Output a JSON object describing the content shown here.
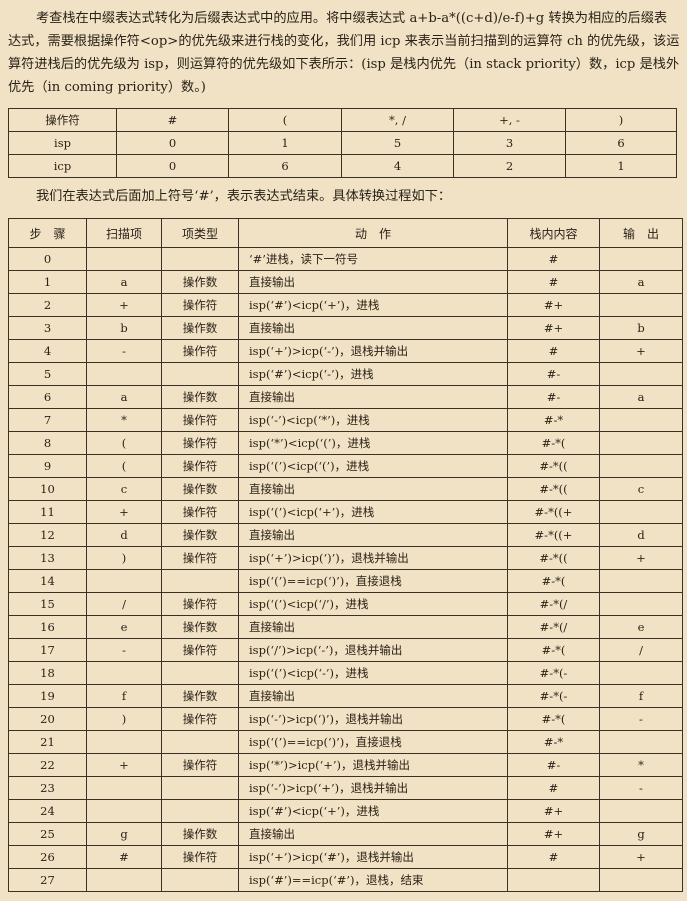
{
  "intro": "考查栈在中缀表达式转化为后缀表达式中的应用。将中缀表达式 a+b-a*((c+d)/e-f)+g 转换为相应的后缀表达式，需要根据操作符<op>的优先级来进行栈的变化，我们用 icp 来表示当前扫描到的运算符 ch 的优先级，该运算符进栈后的优先级为 isp，则运算符的优先级如下表所示：(isp 是栈内优先（in stack priority）数，icp 是栈外优先（in coming priority）数。)",
  "priority_table": {
    "rows": [
      [
        "操作符",
        "#",
        "(",
        "*, /",
        "+, -",
        ")"
      ],
      [
        "isp",
        "0",
        "1",
        "5",
        "3",
        "6"
      ],
      [
        "icp",
        "0",
        "6",
        "4",
        "2",
        "1"
      ]
    ]
  },
  "intro2": "我们在表达式后面加上符号‘#’，表示表达式结束。具体转换过程如下：",
  "steps_headers": [
    "步　骤",
    "扫描项",
    "项类型",
    "动　作",
    "栈内内容",
    "输　出"
  ],
  "steps": [
    [
      "0",
      "",
      "",
      "‘#’进栈，读下一符号",
      "#",
      ""
    ],
    [
      "1",
      "a",
      "操作数",
      "直接输出",
      "#",
      "a"
    ],
    [
      "2",
      "+",
      "操作符",
      "isp(‘#’)<icp(‘+’)，进栈",
      "#+",
      ""
    ],
    [
      "3",
      "b",
      "操作数",
      "直接输出",
      "#+",
      "b"
    ],
    [
      "4",
      "-",
      "操作符",
      "isp(‘+’)>icp(‘-’)，退栈并输出",
      "#",
      "+"
    ],
    [
      "5",
      "",
      "",
      "isp(‘#’)<icp(‘-’)，进栈",
      "#-",
      ""
    ],
    [
      "6",
      "a",
      "操作数",
      "直接输出",
      "#-",
      "a"
    ],
    [
      "7",
      "*",
      "操作符",
      "isp(‘-’)<icp(‘*’)，进栈",
      "#-*",
      ""
    ],
    [
      "8",
      "(",
      "操作符",
      "isp(‘*’)<icp(‘(’)，进栈",
      "#-*(",
      ""
    ],
    [
      "9",
      "(",
      "操作符",
      "isp(‘(’)<icp(‘(’)，进栈",
      "#-*((",
      ""
    ],
    [
      "10",
      "c",
      "操作数",
      "直接输出",
      "#-*((",
      "c"
    ],
    [
      "11",
      "+",
      "操作符",
      "isp(‘(’)<icp(‘+’)，进栈",
      "#-*((+",
      ""
    ],
    [
      "12",
      "d",
      "操作数",
      "直接输出",
      "#-*((+",
      "d"
    ],
    [
      "13",
      ")",
      "操作符",
      "isp(‘+’)>icp(‘)’)，退栈并输出",
      "#-*((",
      "+"
    ],
    [
      "14",
      "",
      "",
      "isp(‘(’)==icp(‘)’)，直接退栈",
      "#-*(",
      ""
    ],
    [
      "15",
      "/",
      "操作符",
      "isp(‘(’)<icp(‘/’)，进栈",
      "#-*(/",
      ""
    ],
    [
      "16",
      "e",
      "操作数",
      "直接输出",
      "#-*(/",
      "e"
    ],
    [
      "17",
      "-",
      "操作符",
      "isp(‘/’)>icp(‘-’)，退栈并输出",
      "#-*(",
      "/"
    ],
    [
      "18",
      "",
      "",
      "isp(‘(’)<icp(‘-’)，进栈",
      "#-*(-",
      ""
    ],
    [
      "19",
      "f",
      "操作数",
      "直接输出",
      "#-*(-",
      "f"
    ],
    [
      "20",
      ")",
      "操作符",
      "isp(‘-’)>icp(‘)’)，退栈并输出",
      "#-*(",
      "-"
    ],
    [
      "21",
      "",
      "",
      "isp(‘(’)==icp(‘)’)，直接退栈",
      "#-*",
      ""
    ],
    [
      "22",
      "+",
      "操作符",
      "isp(‘*’)>icp(‘+’)，退栈并输出",
      "#-",
      "*"
    ],
    [
      "23",
      "",
      "",
      "isp(‘-’)>icp(‘+’)，退栈并输出",
      "#",
      "-"
    ],
    [
      "24",
      "",
      "",
      "isp(‘#’)<icp(‘+’)，进栈",
      "#+",
      ""
    ],
    [
      "25",
      "g",
      "操作数",
      "直接输出",
      "#+",
      "g"
    ],
    [
      "26",
      "#",
      "操作符",
      "isp(‘+’)>icp(‘#’)，退栈并输出",
      "#",
      "+"
    ],
    [
      "27",
      "",
      "",
      "isp(‘#’)==icp(‘#’)，退栈，结束",
      "",
      ""
    ]
  ]
}
